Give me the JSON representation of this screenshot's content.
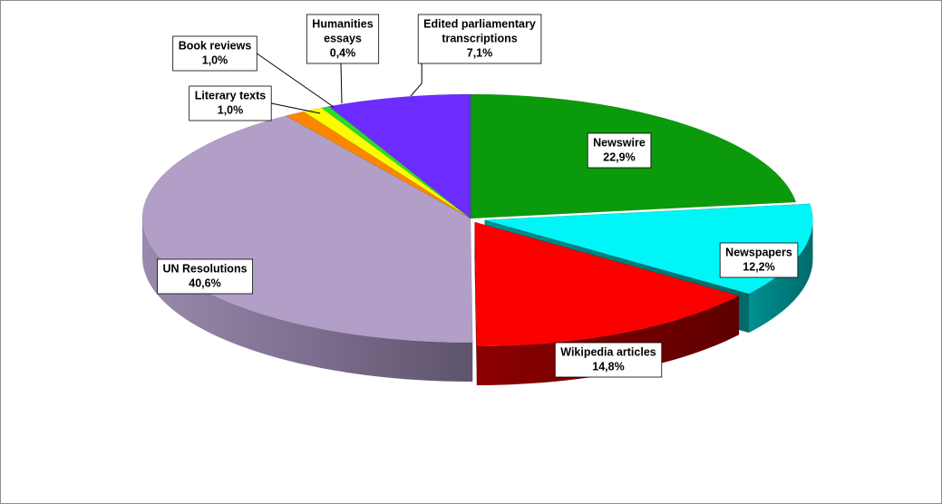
{
  "chart_data": {
    "type": "pie",
    "unit": "%",
    "slices": [
      {
        "label": "Newswire",
        "value": 22.9,
        "value_text": "22,9%",
        "color": "#0b9a0b"
      },
      {
        "label": "Newspapers",
        "value": 12.2,
        "value_text": "12,2%",
        "color": "#00f6f6"
      },
      {
        "label": "Wikipedia articles",
        "value": 14.8,
        "value_text": "14,8%",
        "color": "#fc0000"
      },
      {
        "label": "UN Resolutions",
        "value": 40.6,
        "value_text": "40,6%",
        "color": "#b29fc8"
      },
      {
        "label": "Literary texts",
        "value": 1.0,
        "value_text": "1,0%",
        "color": "#fc8600"
      },
      {
        "label": "Book reviews",
        "value": 1.0,
        "value_text": "1,0%",
        "color": "#fcfc00"
      },
      {
        "label": "Humanities essays",
        "value": 0.4,
        "value_text": "0,4%",
        "color": "#25e025"
      },
      {
        "label": "Edited parliamentary transcriptions",
        "value": 7.1,
        "value_text": "7,1%",
        "color": "#6c2cff"
      }
    ],
    "legend": "none",
    "data_labels": "callout"
  }
}
